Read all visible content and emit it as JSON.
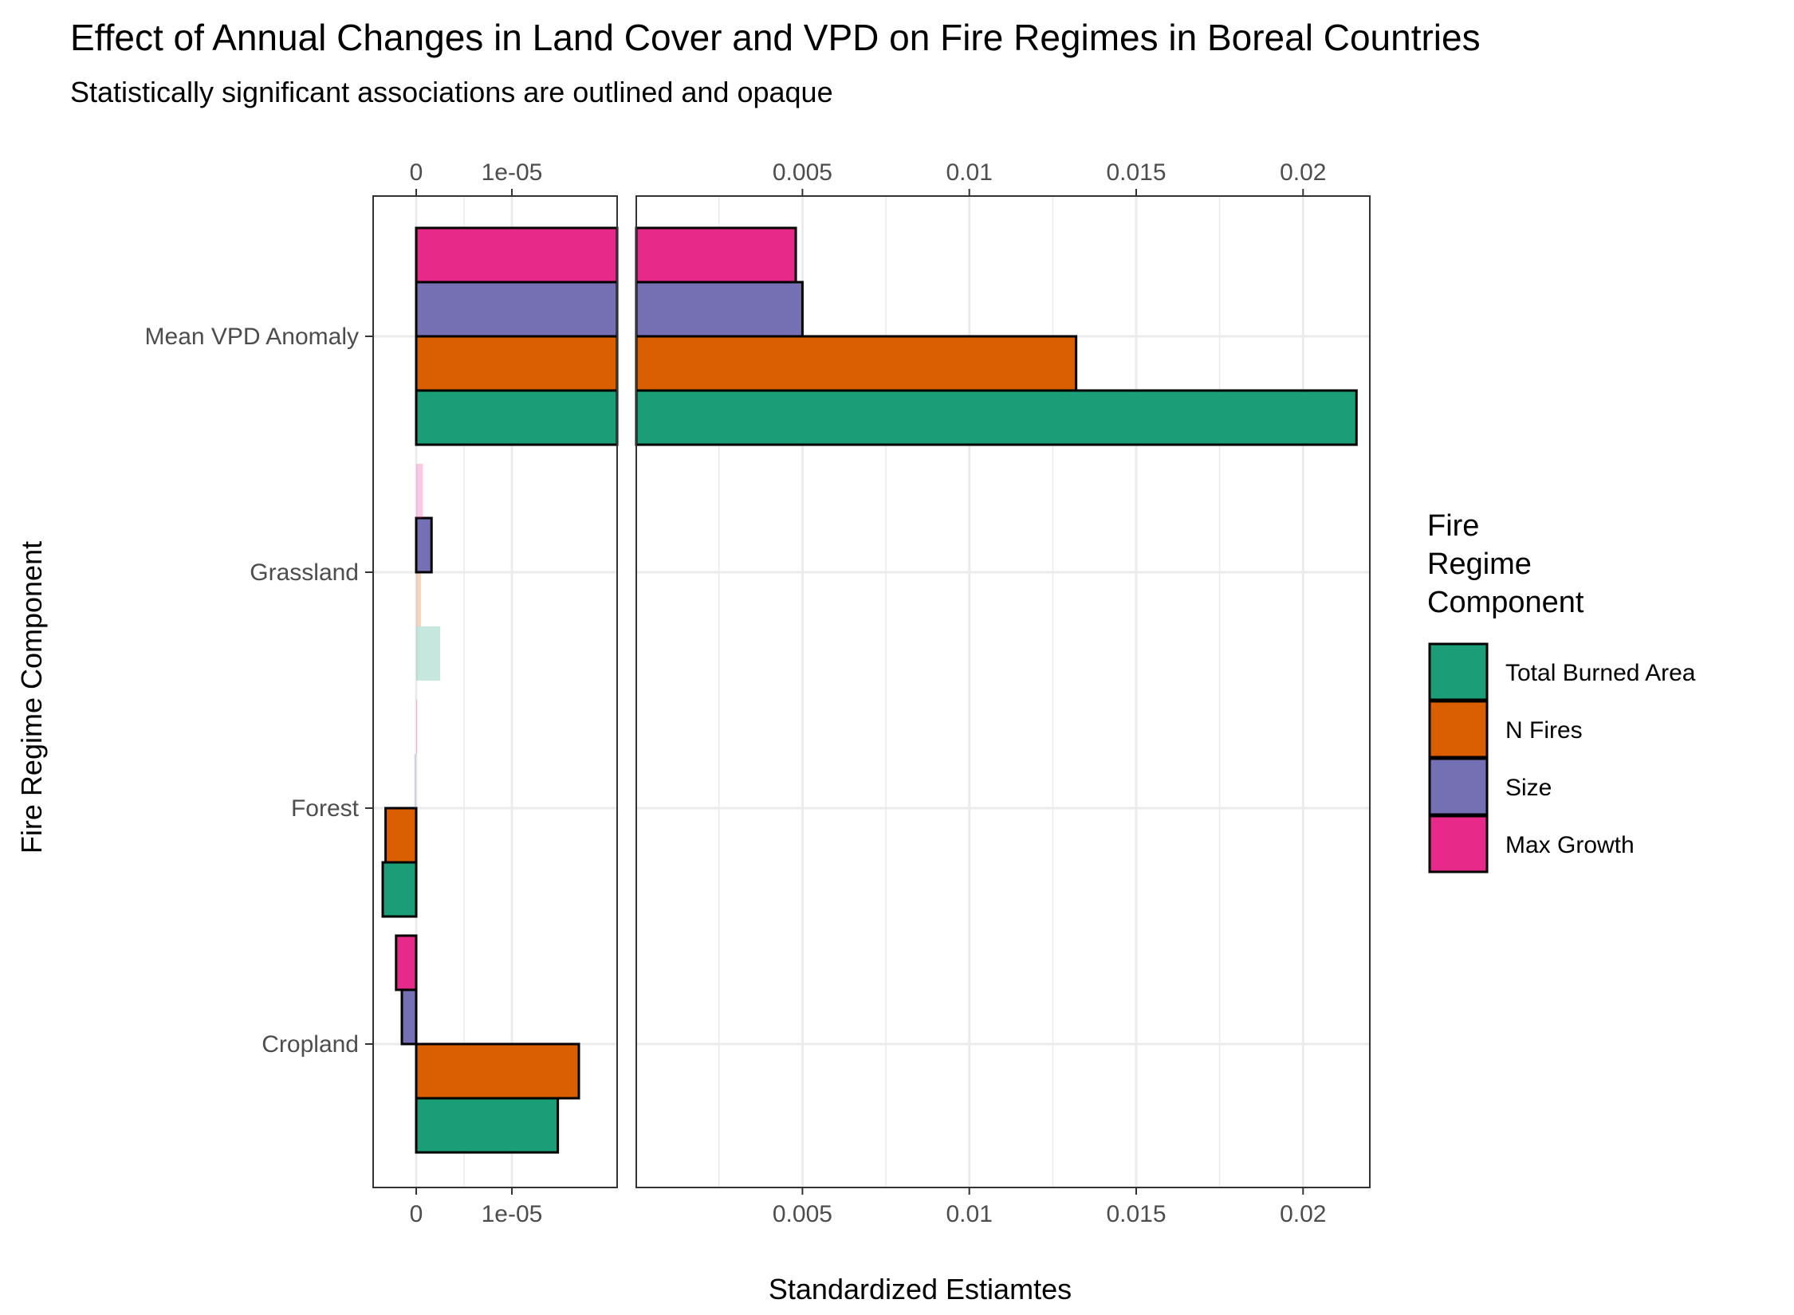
{
  "chart_data": {
    "type": "bar",
    "orientation": "horizontal",
    "title": "Effect of Annual Changes in Land Cover and VPD on Fire Regimes in Boreal Countries",
    "subtitle": "Statistically significant associations are outlined and opaque",
    "xlabel": "Standardized Estiamtes",
    "ylabel": "Fire Regime Component",
    "categories": [
      "Mean VPD Anomaly",
      "Grassland",
      "Forest",
      "Cropland"
    ],
    "x_axis_break": true,
    "panels": [
      {
        "xlim": [
          -4.5e-06,
          2.1e-05
        ],
        "ticks": [
          0,
          1e-05
        ],
        "tick_labels": [
          "0",
          "1e-05"
        ]
      },
      {
        "xlim": [
          2.1e-05,
          0.022
        ],
        "ticks": [
          0.005,
          0.01,
          0.015,
          0.02
        ],
        "tick_labels": [
          "0.005",
          "0.01",
          "0.015",
          "0.02"
        ]
      }
    ],
    "series": [
      {
        "name": "Total Burned Area",
        "color": "#1b9e77",
        "values": [
          0.0216,
          2.5e-06,
          -3.5e-06,
          1.48e-05
        ],
        "significant": [
          true,
          false,
          true,
          true
        ]
      },
      {
        "name": "N Fires",
        "color": "#d95f02",
        "values": [
          0.0132,
          5e-07,
          -3.2e-06,
          1.7e-05
        ],
        "significant": [
          true,
          false,
          true,
          true
        ]
      },
      {
        "name": "Size",
        "color": "#7570b3",
        "values": [
          0.005,
          1.6e-06,
          -2e-07,
          -1.5e-06
        ],
        "significant": [
          true,
          true,
          false,
          true
        ]
      },
      {
        "name": "Max Growth",
        "color": "#e7298a",
        "values": [
          0.0048,
          7e-07,
          1e-07,
          -2.1e-06
        ],
        "significant": [
          true,
          false,
          false,
          true
        ]
      }
    ],
    "legend": {
      "title": [
        "Fire",
        "Regime",
        "Component"
      ],
      "position": "right"
    },
    "grid": true
  }
}
